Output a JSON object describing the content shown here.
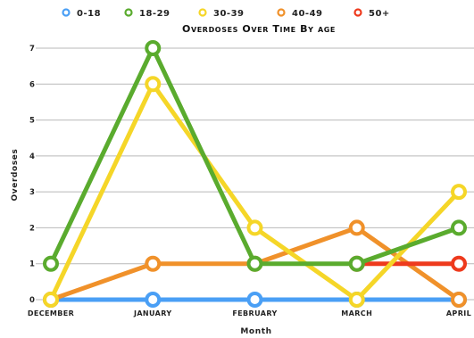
{
  "chart_data": {
    "type": "line",
    "title": "Overdoses Over Time By age",
    "xlabel": "Month",
    "ylabel": "Overdoses",
    "categories": [
      "December",
      "January",
      "February",
      "March",
      "April"
    ],
    "ylim": [
      0,
      7
    ],
    "yticks": [
      "0",
      "1",
      "2",
      "3",
      "4",
      "5",
      "6",
      "7"
    ],
    "grid": true,
    "legend_position": "top",
    "series": [
      {
        "name": "0-18",
        "color": "#4a9ff5",
        "values": [
          0,
          0,
          0,
          0,
          0
        ]
      },
      {
        "name": "18-29",
        "color": "#5aab2e",
        "values": [
          1,
          7,
          1,
          1,
          2
        ]
      },
      {
        "name": "30-39",
        "color": "#f5d628",
        "values": [
          0,
          6,
          2,
          0,
          3
        ]
      },
      {
        "name": "40-49",
        "color": "#f0912a",
        "values": [
          0,
          1,
          1,
          2,
          0
        ]
      },
      {
        "name": "50+",
        "color": "#ee3a1d",
        "values": [
          null,
          null,
          null,
          1,
          1
        ]
      }
    ]
  }
}
